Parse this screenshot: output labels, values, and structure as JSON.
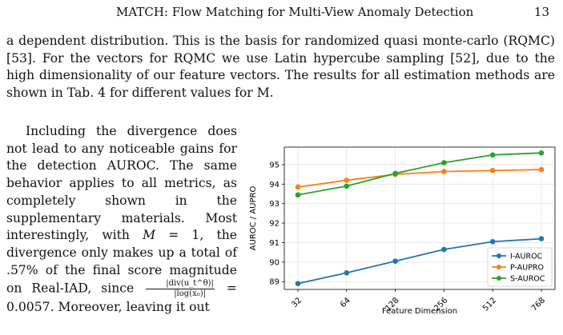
{
  "header": {
    "running_title": "MATCH: Flow Matching for Multi-View Anomaly Detection",
    "page_number": "13"
  },
  "paragraph1": "a dependent distribution. This is the basis for randomized quasi monte-carlo (RQMC) [53]. For the vectors for RQMC we use Latin hypercube sampling [52], due to the high dimensionality of our feature vectors. The results for all estimation methods are shown in Tab. 4 for different values for M.",
  "paragraph2": {
    "text_before": "Including the divergence does not lead to any noticeable gains for the detection AUROC. The same behavior applies to all metrics, as completely shown in the supplementary materials. Most interestingly, with ",
    "math_M": "M",
    "text_eq": " = 1, the divergence only makes up a total of .57% of the final score magnitude on Real-IAD, since ",
    "frac_num": "|div(u_t^θ)|",
    "frac_den": "|log(x₀)|",
    "text_after": " = 0.0057. Moreover, leaving it out"
  },
  "chart_data": {
    "type": "line",
    "xlabel": "Feature Dimension",
    "ylabel": "AUROC / AUPRO",
    "categories": [
      "32",
      "64",
      "128",
      "256",
      "512",
      "768"
    ],
    "ylim": [
      88.6,
      95.9
    ],
    "yticks": [
      89,
      90,
      91,
      92,
      93,
      94,
      95
    ],
    "grid": true,
    "legend_position": "lower right",
    "series": [
      {
        "name": "I-AUROC",
        "color": "#1f77b4",
        "values": [
          88.9,
          89.45,
          90.05,
          90.65,
          91.05,
          91.2
        ]
      },
      {
        "name": "P-AUPRO",
        "color": "#ff7f0e",
        "values": [
          93.85,
          94.2,
          94.5,
          94.65,
          94.7,
          94.75
        ]
      },
      {
        "name": "S-AUROC",
        "color": "#2ca02c",
        "values": [
          93.45,
          93.9,
          94.55,
          95.1,
          95.5,
          95.6
        ]
      }
    ]
  }
}
